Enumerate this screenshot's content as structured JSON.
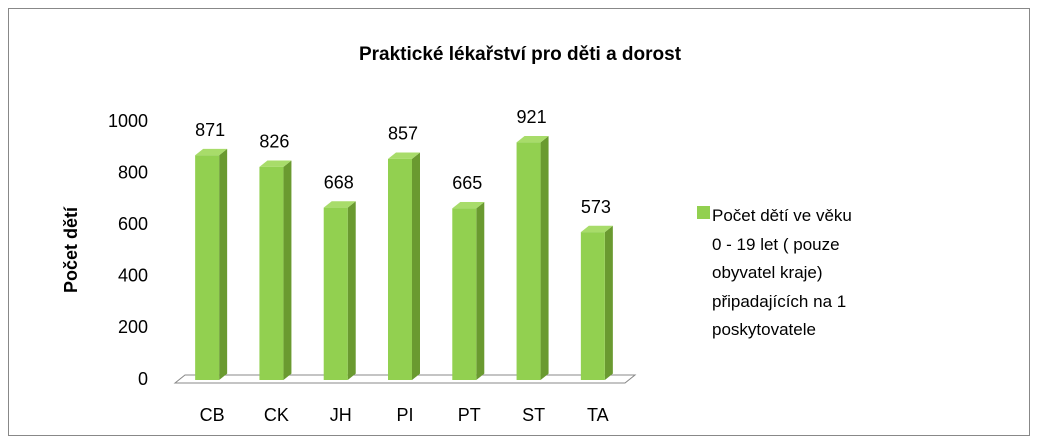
{
  "chart_data": {
    "type": "bar",
    "title": "Praktické lékařství pro děti a dorost",
    "y_label": "Počet dětí",
    "categories": [
      "CB",
      "CK",
      "JH",
      "PI",
      "PT",
      "ST",
      "TA"
    ],
    "series": [
      {
        "name": "Počet dětí ve věku 0 - 19 let ( pouze obyvatel  kraje) připadajících na 1 poskytovatele",
        "color": "#92d050",
        "values": [
          871,
          826,
          668,
          857,
          665,
          921,
          573
        ]
      }
    ],
    "ylim": [
      0,
      1000
    ],
    "yticks": [
      0,
      200,
      400,
      600,
      800,
      1000
    ],
    "grid": false,
    "legend": "right",
    "data_labels": true
  }
}
